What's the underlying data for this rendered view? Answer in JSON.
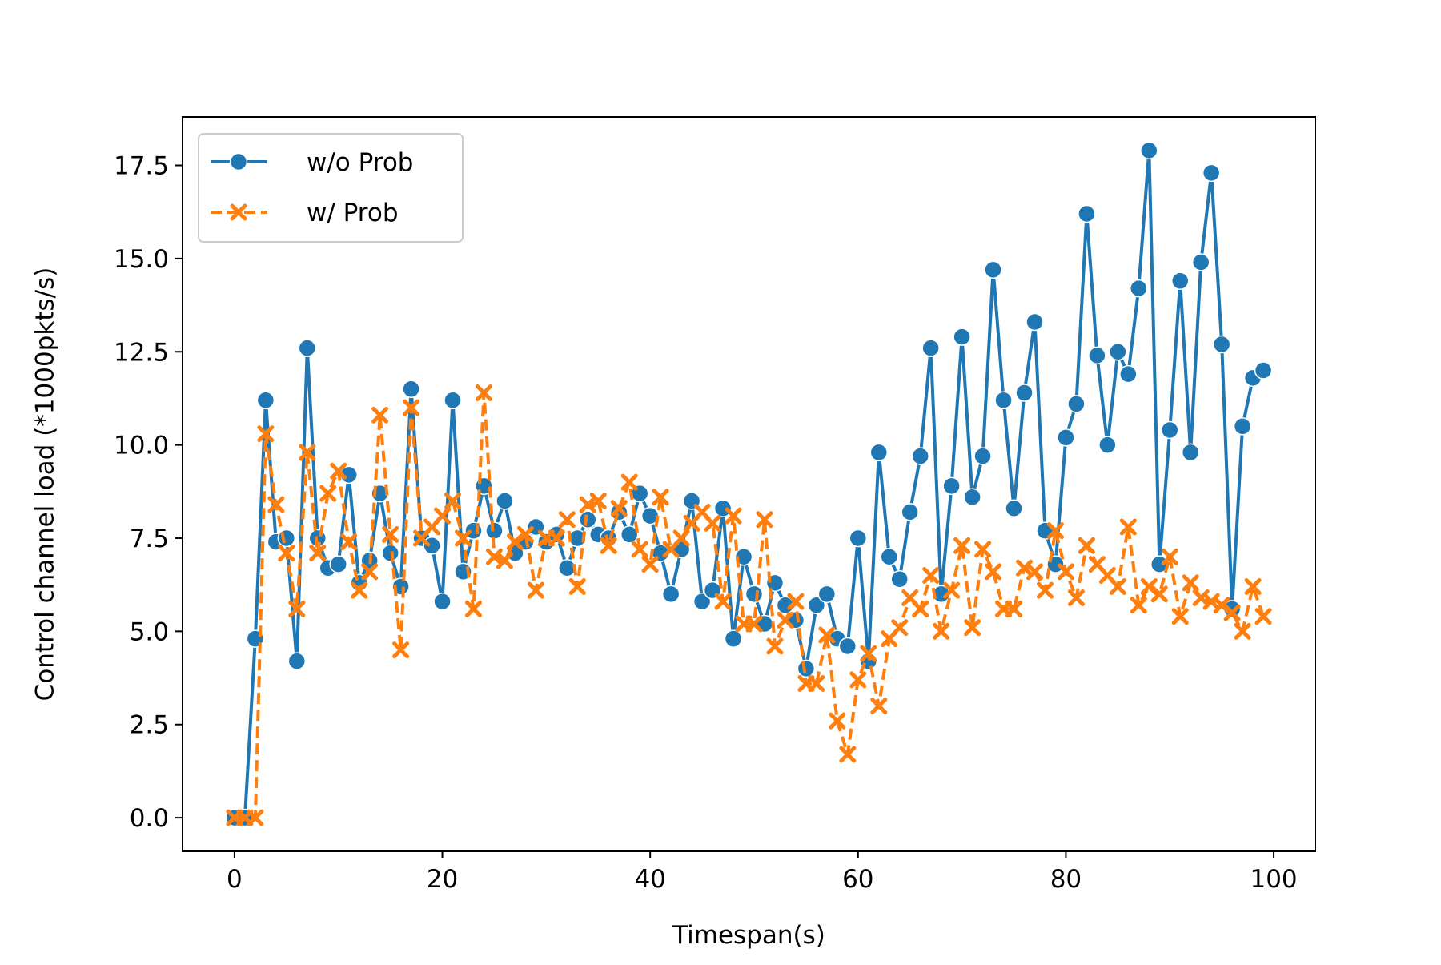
{
  "chart_data": {
    "type": "line",
    "title": "",
    "xlabel": "Timespan(s)",
    "ylabel": "Control channel load (*1000pkts/s)",
    "xlim": [
      -5,
      104
    ],
    "ylim": [
      -0.9,
      18.8
    ],
    "x_ticks": [
      0,
      20,
      40,
      60,
      80,
      100
    ],
    "y_ticks": [
      0.0,
      2.5,
      5.0,
      7.5,
      10.0,
      12.5,
      15.0,
      17.5
    ],
    "x_tick_labels": [
      "0",
      "20",
      "40",
      "60",
      "80",
      "100"
    ],
    "y_tick_labels": [
      "0.0",
      "2.5",
      "5.0",
      "7.5",
      "10.0",
      "12.5",
      "15.0",
      "17.5"
    ],
    "grid": false,
    "legend_position": "upper left",
    "x": [
      0,
      1,
      2,
      3,
      4,
      5,
      6,
      7,
      8,
      9,
      10,
      11,
      12,
      13,
      14,
      15,
      16,
      17,
      18,
      19,
      20,
      21,
      22,
      23,
      24,
      25,
      26,
      27,
      28,
      29,
      30,
      31,
      32,
      33,
      34,
      35,
      36,
      37,
      38,
      39,
      40,
      41,
      42,
      43,
      44,
      45,
      46,
      47,
      48,
      49,
      50,
      51,
      52,
      53,
      54,
      55,
      56,
      57,
      58,
      59,
      60,
      61,
      62,
      63,
      64,
      65,
      66,
      67,
      68,
      69,
      70,
      71,
      72,
      73,
      74,
      75,
      76,
      77,
      78,
      79,
      80,
      81,
      82,
      83,
      84,
      85,
      86,
      87,
      88,
      89,
      90,
      91,
      92,
      93,
      94,
      95,
      96,
      97,
      98,
      99
    ],
    "series": [
      {
        "name": "w/o Prob",
        "color": "#1f77b4",
        "linestyle": "solid",
        "marker": "circle",
        "values": [
          0.0,
          0.0,
          4.8,
          11.2,
          7.4,
          7.5,
          4.2,
          12.6,
          7.5,
          6.7,
          6.8,
          9.2,
          6.3,
          6.9,
          8.7,
          7.1,
          6.2,
          11.5,
          7.5,
          7.3,
          5.8,
          11.2,
          6.6,
          7.7,
          8.9,
          7.7,
          8.5,
          7.1,
          7.4,
          7.8,
          7.4,
          7.6,
          6.7,
          7.5,
          8.0,
          7.6,
          7.5,
          8.2,
          7.6,
          8.7,
          8.1,
          7.1,
          6.0,
          7.2,
          8.5,
          5.8,
          6.1,
          8.3,
          4.8,
          7.0,
          6.0,
          5.2,
          6.3,
          5.7,
          5.3,
          4.0,
          5.7,
          6.0,
          4.8,
          4.6,
          7.5,
          4.2,
          9.8,
          7.0,
          6.4,
          8.2,
          9.7,
          12.6,
          6.0,
          8.9,
          12.9,
          8.6,
          9.7,
          14.7,
          11.2,
          8.3,
          11.4,
          13.3,
          7.7,
          6.8,
          10.2,
          11.1,
          16.2,
          12.4,
          10.0,
          12.5,
          11.9,
          14.2,
          17.9,
          6.8,
          10.4,
          14.4,
          9.8,
          14.9,
          17.3,
          12.7,
          5.6,
          10.5,
          11.8,
          12.0
        ]
      },
      {
        "name": "w/ Prob",
        "color": "#ff7f0e",
        "linestyle": "dashed",
        "marker": "x",
        "values": [
          0.0,
          0.0,
          0.0,
          10.3,
          8.4,
          7.1,
          5.6,
          9.8,
          7.1,
          8.7,
          9.3,
          7.4,
          6.1,
          6.6,
          10.8,
          7.6,
          4.5,
          11.0,
          7.5,
          7.8,
          8.1,
          8.5,
          7.5,
          5.6,
          11.4,
          7.0,
          6.9,
          7.4,
          7.6,
          6.1,
          7.5,
          7.5,
          8.0,
          6.2,
          8.4,
          8.5,
          7.3,
          8.3,
          9.0,
          7.2,
          6.8,
          8.6,
          7.2,
          7.5,
          7.9,
          8.2,
          7.9,
          5.8,
          8.1,
          5.2,
          5.2,
          8.0,
          4.6,
          5.3,
          5.8,
          3.6,
          3.6,
          4.9,
          2.6,
          1.7,
          3.7,
          4.4,
          3.0,
          4.8,
          5.1,
          5.9,
          5.6,
          6.5,
          5.0,
          6.1,
          7.3,
          5.1,
          7.2,
          6.6,
          5.6,
          5.6,
          6.7,
          6.6,
          6.1,
          7.7,
          6.6,
          5.9,
          7.3,
          6.8,
          6.5,
          6.2,
          7.8,
          5.7,
          6.2,
          6.0,
          7.0,
          5.4,
          6.3,
          5.9,
          5.8,
          5.7,
          5.5,
          5.0,
          6.2,
          5.4
        ]
      }
    ]
  }
}
